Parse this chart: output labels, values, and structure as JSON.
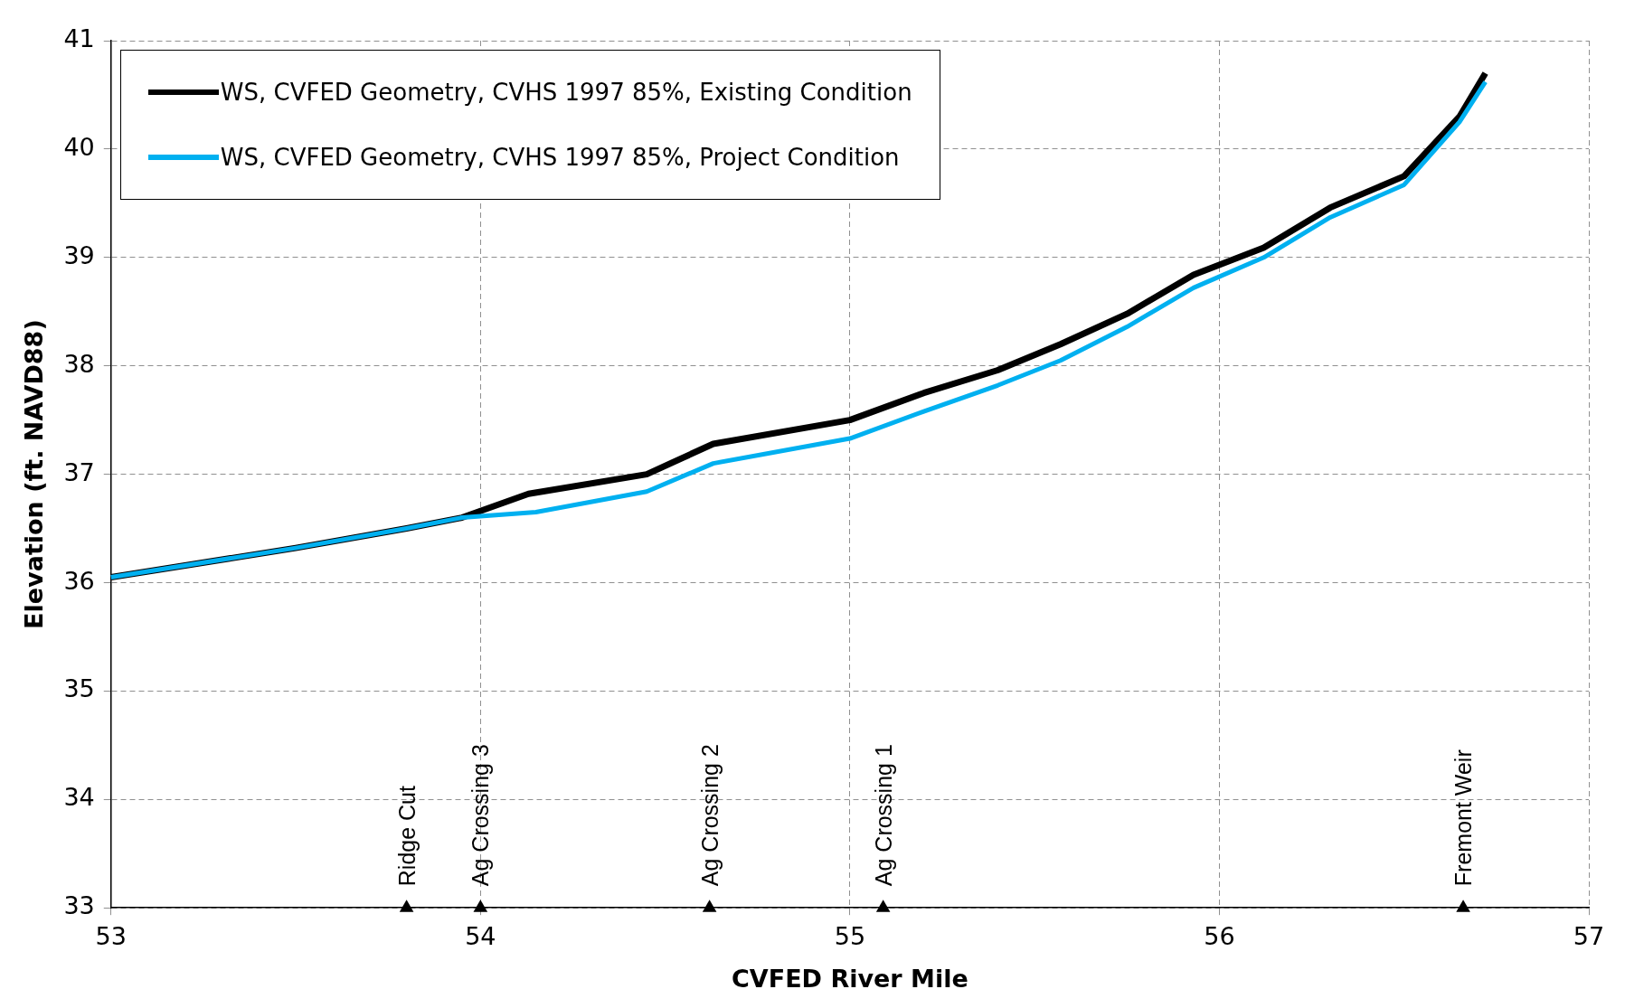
{
  "chart_data": {
    "type": "line",
    "xlabel": "CVFED River Mile",
    "ylabel": "Elevation (ft. NAVD88)",
    "xlim": [
      53,
      57
    ],
    "xticks": [
      53,
      54,
      55,
      56,
      57
    ],
    "ylim": [
      33,
      41
    ],
    "yticks": [
      33,
      34,
      35,
      36,
      37,
      38,
      39,
      40,
      41
    ],
    "grid": true,
    "legend": "top left",
    "marker": "none",
    "line_style": "solid",
    "series": [
      {
        "name": "WS, CVFED Geometry, CVHS 1997 85%, Existing Condition",
        "color": "#000000",
        "x": [
          53,
          53.5,
          53.8,
          53.95,
          54.13,
          54.45,
          54.63,
          55,
          55.2,
          55.4,
          55.57,
          55.75,
          55.93,
          56.12,
          56.3,
          56.5,
          56.65,
          56.72
        ],
        "values": [
          36.05,
          36.32,
          36.5,
          36.6,
          36.82,
          37.0,
          37.28,
          37.5,
          37.75,
          37.96,
          38.2,
          38.48,
          38.84,
          39.09,
          39.46,
          39.75,
          40.3,
          40.7
        ]
      },
      {
        "name": "WS, CVFED Geometry, CVHS 1997 85%, Project Condition",
        "color": "#00b0f0",
        "x": [
          53,
          53.5,
          53.8,
          53.95,
          54.15,
          54.45,
          54.63,
          55,
          55.2,
          55.4,
          55.57,
          55.75,
          55.93,
          56.12,
          56.3,
          56.5,
          56.65,
          56.72
        ],
        "values": [
          36.05,
          36.32,
          36.5,
          36.6,
          36.65,
          36.84,
          37.1,
          37.33,
          37.58,
          37.82,
          38.05,
          38.36,
          38.72,
          39.0,
          39.37,
          39.67,
          40.25,
          40.62
        ]
      },
      {
        "type": "scatter",
        "marker": "triangle",
        "color": "#000000",
        "x": [
          53.8,
          54.0,
          54.62,
          55.09,
          56.66
        ],
        "values": [
          33,
          33,
          33,
          33,
          33
        ],
        "value_labels": [
          "Ridge Cut",
          "Ag Crossing 3",
          "Ag Crossing 2",
          "Ag Crossing 1",
          "Fremont Weir"
        ]
      }
    ]
  }
}
